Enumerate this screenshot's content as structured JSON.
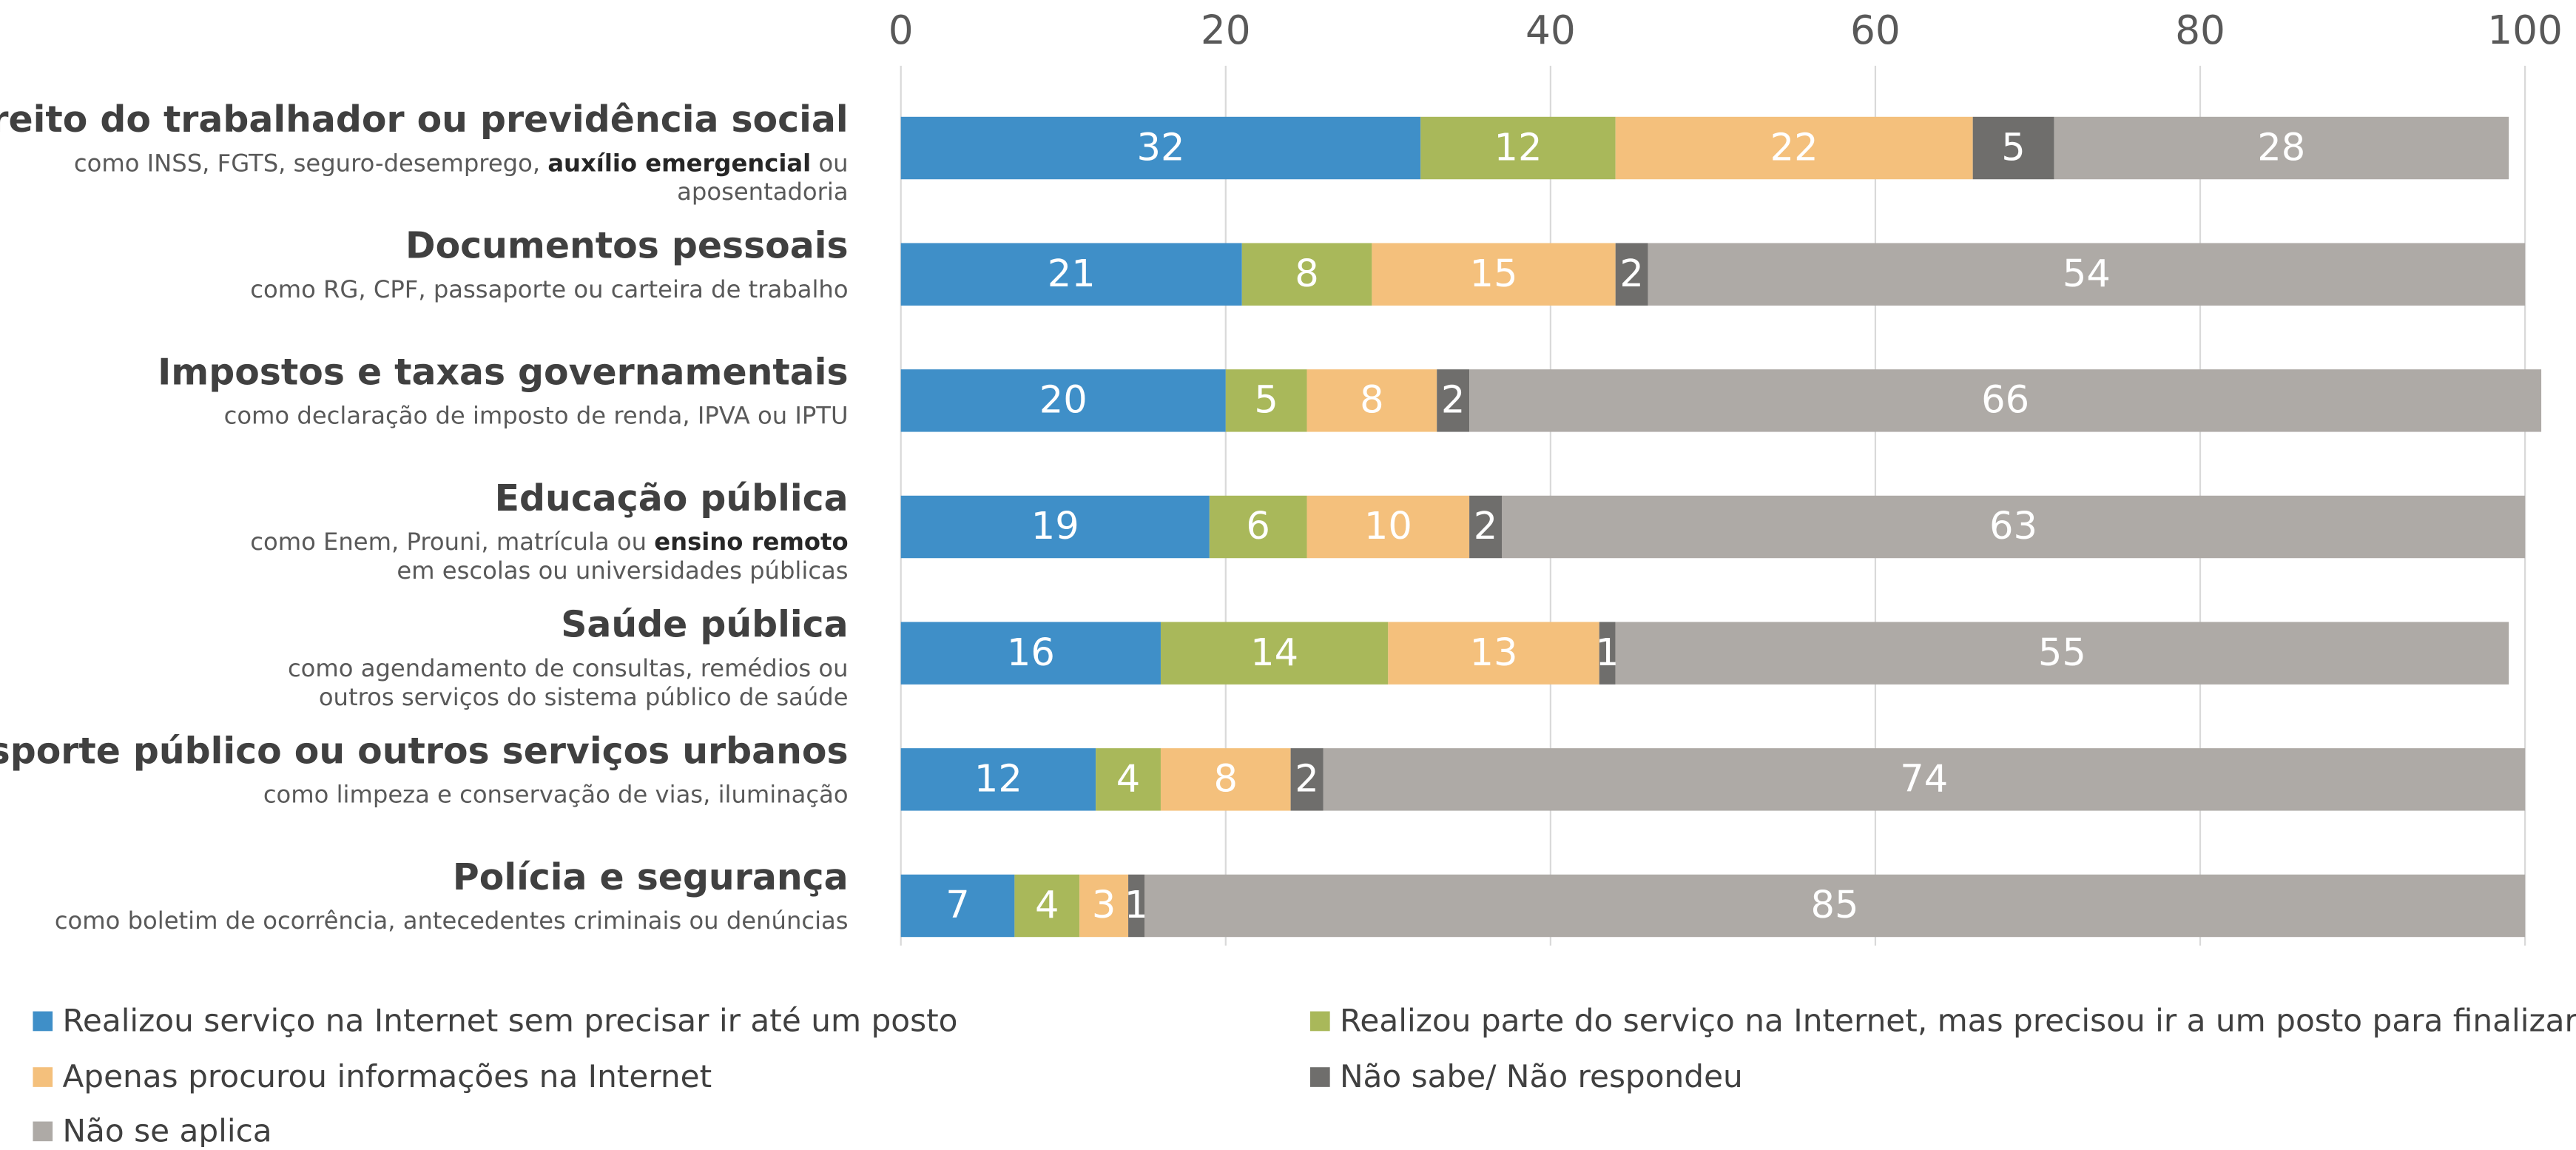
{
  "chart_data": {
    "type": "stacked_bar_horizontal",
    "categories": [
      "Direito do trabalhador ou previdência social",
      "Documentos pessoais",
      "Impostos e taxas governamentais",
      "Educação pública",
      "Saúde pública",
      "Transporte público ou outros serviços urbanos",
      "Polícia e segurança"
    ],
    "subtitles": [
      [
        [
          {
            "text": "como INSS, FGTS, seguro-desemprego, ",
            "bold": false
          },
          {
            "text": "auxílio emergencial",
            "bold": true
          },
          {
            "text": " ou",
            "bold": false
          }
        ],
        [
          {
            "text": "aposentadoria",
            "bold": false
          }
        ]
      ],
      [
        [
          {
            "text": "como RG, CPF, passaporte ou carteira de trabalho",
            "bold": false
          }
        ]
      ],
      [
        [
          {
            "text": "como declaração de imposto de renda, IPVA ou IPTU",
            "bold": false
          }
        ]
      ],
      [
        [
          {
            "text": "como Enem, Prouni, matrícula ou ",
            "bold": false
          },
          {
            "text": "ensino remoto",
            "bold": true
          }
        ],
        [
          {
            "text": "em escolas ou universidades públicas",
            "bold": false
          }
        ]
      ],
      [
        [
          {
            "text": "como agendamento de consultas, remédios ou",
            "bold": false
          }
        ],
        [
          {
            "text": "outros serviços do sistema público de saúde",
            "bold": false
          }
        ]
      ],
      [
        [
          {
            "text": "como limpeza e conservação de vias, iluminação",
            "bold": false
          }
        ]
      ],
      [
        [
          {
            "text": "como boletim de ocorrência, antecedentes criminais ou denúncias",
            "bold": false
          }
        ]
      ]
    ],
    "series": [
      {
        "name": "Realizou serviço na Internet sem precisar ir até um posto",
        "color": "#3f8fc8",
        "values": [
          32,
          21,
          20,
          19,
          16,
          12,
          7
        ]
      },
      {
        "name": "Realizou parte do serviço na Internet, mas precisou ir a um posto para finalizar",
        "color": "#a9b85a",
        "values": [
          12,
          8,
          5,
          6,
          14,
          4,
          4
        ]
      },
      {
        "name": "Apenas procurou informações na Internet",
        "color": "#f4c07c",
        "values": [
          22,
          15,
          8,
          10,
          13,
          8,
          3
        ]
      },
      {
        "name": "Não sabe/ Não respondeu",
        "color": "#6f6e6c",
        "values": [
          5,
          2,
          2,
          2,
          1,
          2,
          1
        ]
      },
      {
        "name": "Não se aplica",
        "color": "#aeaaa6",
        "values": [
          28,
          54,
          66,
          63,
          55,
          74,
          85
        ]
      }
    ],
    "xlim": [
      0,
      100
    ],
    "xticks": [
      0,
      20,
      40,
      60,
      80,
      100
    ],
    "grid": true
  }
}
